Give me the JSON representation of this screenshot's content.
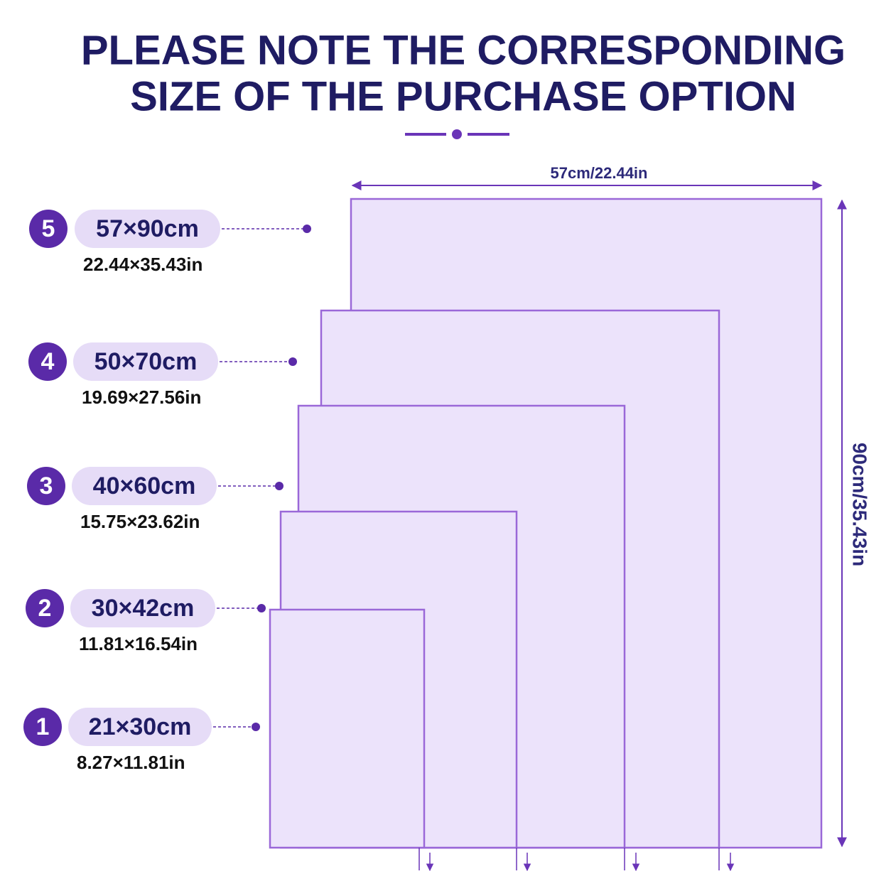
{
  "header": {
    "title_lines": [
      "PLEASE NOTE THE CORRESPONDING",
      "SIZE OF THE PURCHASE OPTION"
    ]
  },
  "dimensions": {
    "width": "57cm/22.44in",
    "height": "90cm/35.43in"
  },
  "options": [
    {
      "number": "5",
      "cm": "57×90cm",
      "inches": "22.44×35.43in"
    },
    {
      "number": "4",
      "cm": "50×70cm",
      "inches": "19.69×27.56in"
    },
    {
      "number": "3",
      "cm": "40×60cm",
      "inches": "15.75×23.62in"
    },
    {
      "number": "2",
      "cm": "30×42cm",
      "inches": "11.81×16.54in"
    },
    {
      "number": "1",
      "cm": "21×30cm",
      "inches": "8.27×11.81in"
    }
  ]
}
